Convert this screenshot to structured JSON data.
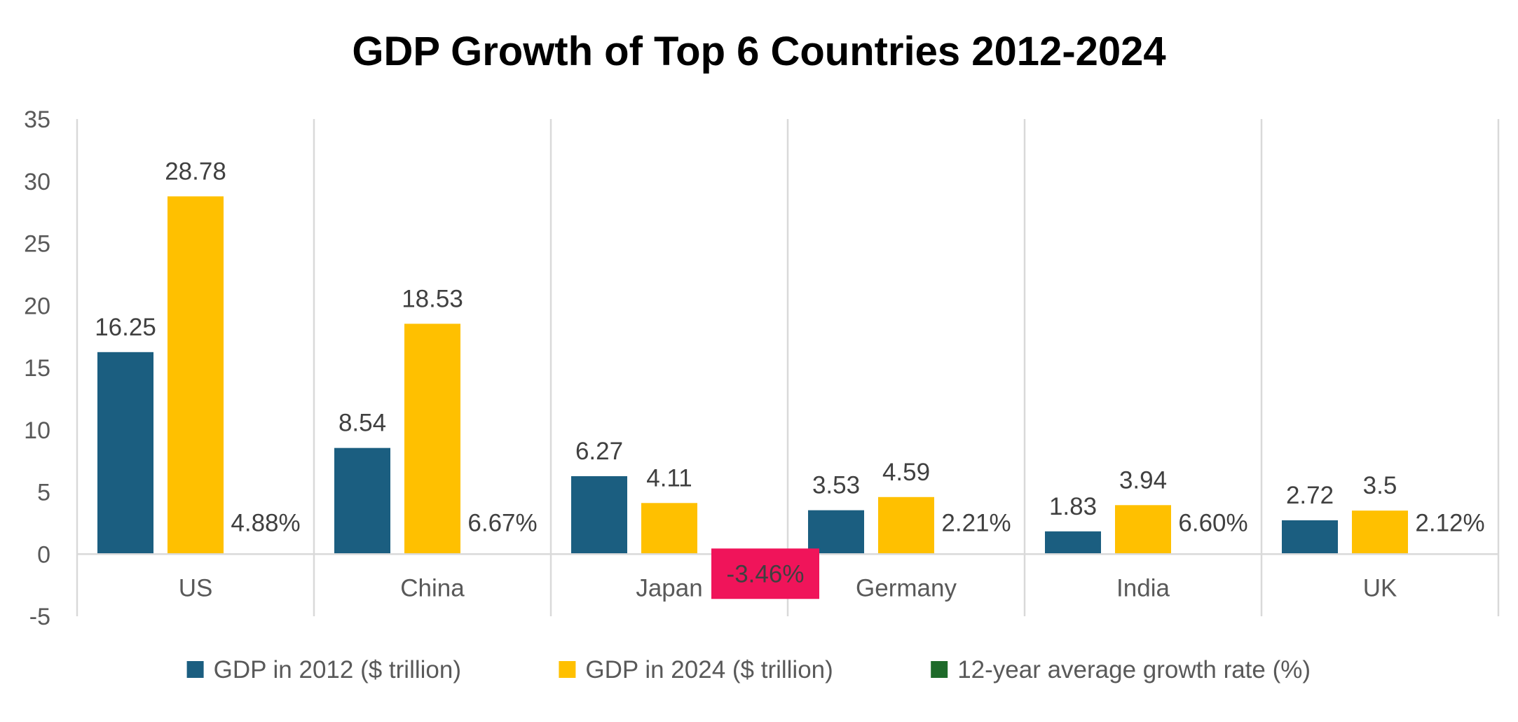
{
  "chart_data": {
    "type": "bar",
    "title": "GDP Growth of Top 6 Countries 2012-2024",
    "xlabel": "",
    "ylabel": "",
    "categories": [
      "US",
      "China",
      "Japan",
      "Germany",
      "India",
      "UK"
    ],
    "ylim": [
      -5,
      35
    ],
    "yticks": [
      35,
      30,
      25,
      20,
      15,
      10,
      5,
      0,
      -5
    ],
    "grid": "vertical-category-separators",
    "legend_position": "bottom",
    "series": [
      {
        "name": "GDP in 2012 ($ trillion)",
        "color": "#1b5e80",
        "values": [
          16.25,
          8.54,
          6.27,
          3.53,
          1.83,
          2.72
        ],
        "labels": [
          "16.25",
          "8.54",
          "6.27",
          "3.53",
          "1.83",
          "2.72"
        ]
      },
      {
        "name": "GDP in 2024 ($ trillion)",
        "color": "#ffc000",
        "values": [
          28.78,
          18.53,
          4.11,
          4.59,
          3.94,
          3.5
        ],
        "labels": [
          "28.78",
          "18.53",
          "4.11",
          "4.59",
          "3.94",
          "3.5"
        ]
      },
      {
        "name": "12-year average growth rate (%)",
        "color": "#1e6b2a",
        "values": [
          4.88,
          6.67,
          -3.46,
          2.21,
          6.6,
          2.12
        ],
        "labels": [
          "4.88%",
          "6.67%",
          "-3.46%",
          "2.21%",
          "6.60%",
          "2.12%"
        ],
        "highlight_negative_color": "#f0145a"
      }
    ]
  }
}
